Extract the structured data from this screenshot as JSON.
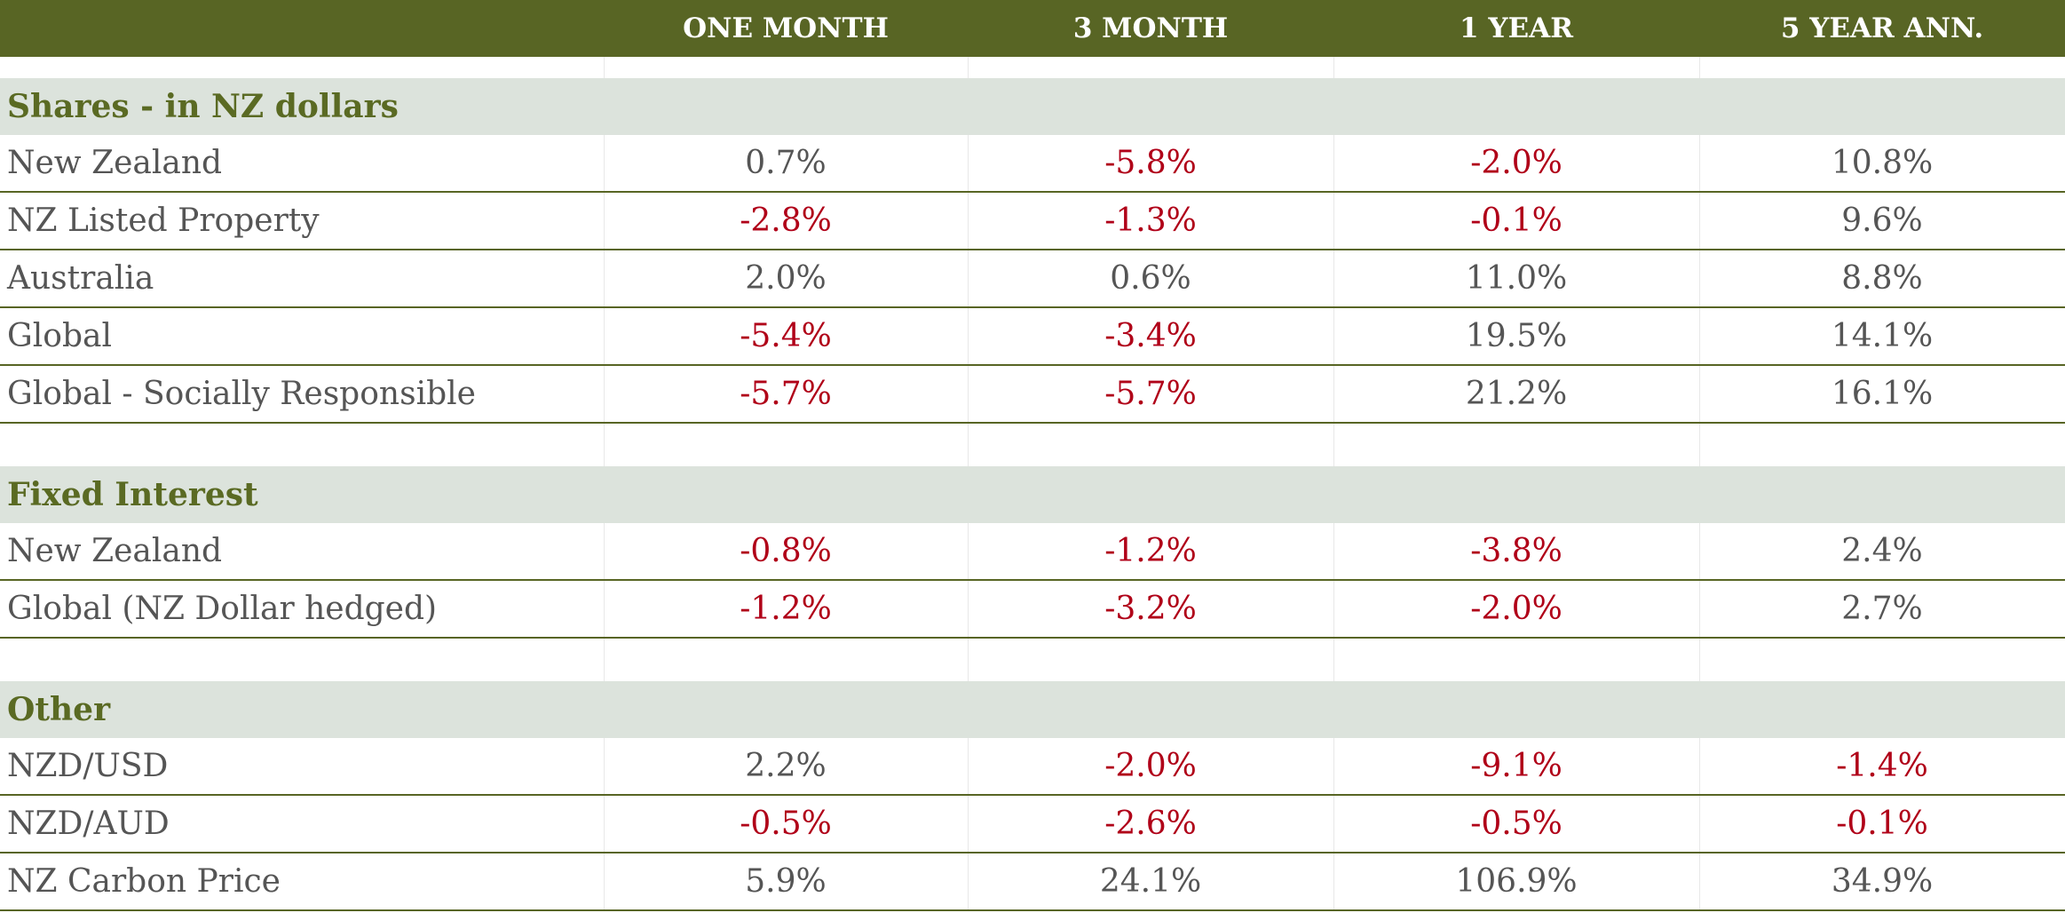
{
  "colors": {
    "header_bg": "#586524",
    "section_bg": "#dce3dc",
    "section_text": "#5a6a23",
    "positive_text": "#555555",
    "negative_text": "#b00018",
    "row_border": "#586524"
  },
  "chart_data": {
    "type": "table",
    "columns": [
      "",
      "ONE MONTH",
      "3 MONTH",
      "1 YEAR",
      "5 YEAR ANN."
    ],
    "sections": [
      {
        "title": "Shares - in NZ dollars",
        "rows": [
          {
            "label": "New Zealand",
            "values": [
              "0.7%",
              "-5.8%",
              "-2.0%",
              "10.8%"
            ]
          },
          {
            "label": "NZ Listed Property",
            "values": [
              "-2.8%",
              "-1.3%",
              "-0.1%",
              "9.6%"
            ]
          },
          {
            "label": "Australia",
            "values": [
              "2.0%",
              "0.6%",
              "11.0%",
              "8.8%"
            ]
          },
          {
            "label": "Global",
            "values": [
              "-5.4%",
              "-3.4%",
              "19.5%",
              "14.1%"
            ]
          },
          {
            "label": "Global - Socially Responsible",
            "values": [
              "-5.7%",
              "-5.7%",
              "21.2%",
              "16.1%"
            ]
          }
        ]
      },
      {
        "title": "Fixed Interest",
        "rows": [
          {
            "label": "New Zealand",
            "values": [
              "-0.8%",
              "-1.2%",
              "-3.8%",
              "2.4%"
            ]
          },
          {
            "label": "Global (NZ Dollar hedged)",
            "values": [
              "-1.2%",
              "-3.2%",
              "-2.0%",
              "2.7%"
            ]
          }
        ]
      },
      {
        "title": "Other",
        "rows": [
          {
            "label": "NZD/USD",
            "values": [
              "2.2%",
              "-2.0%",
              "-9.1%",
              "-1.4%"
            ]
          },
          {
            "label": "NZD/AUD",
            "values": [
              "-0.5%",
              "-2.6%",
              "-0.5%",
              "-0.1%"
            ]
          },
          {
            "label": "NZ Carbon Price",
            "values": [
              "5.9%",
              "24.1%",
              "106.9%",
              "34.9%"
            ]
          }
        ]
      }
    ]
  }
}
